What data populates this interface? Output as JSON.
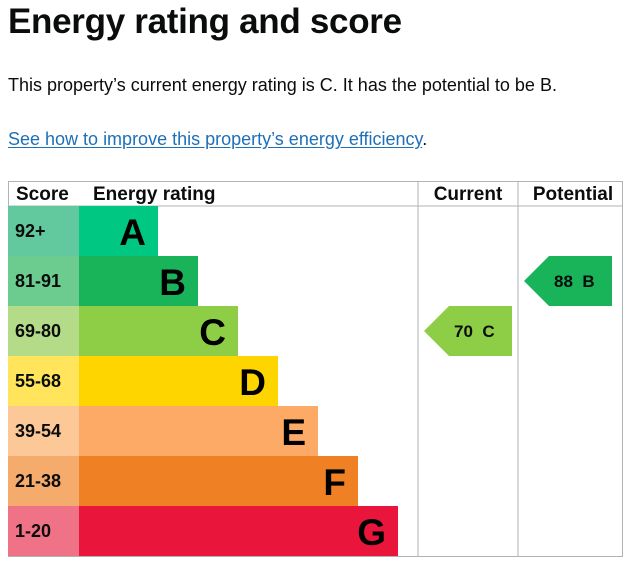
{
  "page": {
    "title": "Energy rating and score",
    "summary": "This property’s current energy rating is C. It has the potential to be B.",
    "link_text": "See how to improve this property’s energy efficiency",
    "link_suffix": "."
  },
  "table": {
    "headers": {
      "score": "Score",
      "energy_rating": "Energy rating",
      "current": "Current",
      "potential": "Potential"
    },
    "bands": [
      {
        "score": "92+",
        "letter": "A",
        "color": "#00c781",
        "score_bg": "#62c99e"
      },
      {
        "score": "81-91",
        "letter": "B",
        "color": "#19b459",
        "score_bg": "#6ccb8f"
      },
      {
        "score": "69-80",
        "letter": "C",
        "color": "#8dce46",
        "score_bg": "#b4dc88"
      },
      {
        "score": "55-68",
        "letter": "D",
        "color": "#ffd500",
        "score_bg": "#ffe45c"
      },
      {
        "score": "39-54",
        "letter": "E",
        "color": "#fcaa65",
        "score_bg": "#fdc898"
      },
      {
        "score": "21-38",
        "letter": "F",
        "color": "#ef8023",
        "score_bg": "#f4ab6b"
      },
      {
        "score": "1-20",
        "letter": "G",
        "color": "#e9153b",
        "score_bg": "#f07287"
      }
    ],
    "current": {
      "score": "70",
      "letter": "C",
      "label": "70  C",
      "color": "#8dce46"
    },
    "potential": {
      "score": "88",
      "letter": "B",
      "label": "88  B",
      "color": "#19b459"
    }
  },
  "colors": {
    "text": "#0b0c0c",
    "link": "#1d70b8",
    "grid": "#b1b4b6"
  }
}
